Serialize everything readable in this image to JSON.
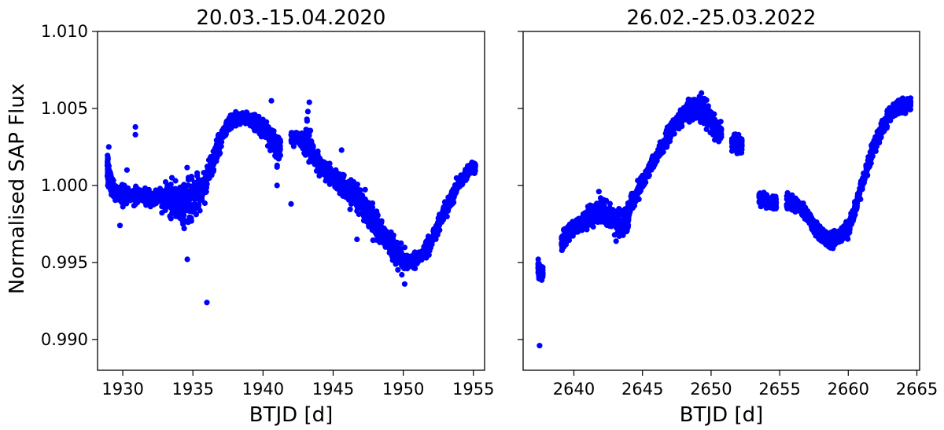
{
  "figure": {
    "ylabel": "Normalised SAP Flux"
  },
  "chart_data": [
    {
      "type": "scatter",
      "title": "20.03.-15.04.2020",
      "xlabel": "BTJD [d]",
      "ylabel": "Normalised SAP Flux",
      "xlim": [
        1928.2,
        1955.8
      ],
      "ylim": [
        0.988,
        1.01
      ],
      "xticks": [
        1930,
        1935,
        1940,
        1945,
        1950,
        1955
      ],
      "xtick_labels": [
        "1930",
        "1935",
        "1940",
        "1945",
        "1950",
        "1955"
      ],
      "yticks": [
        0.99,
        0.995,
        1.0,
        1.005,
        1.01
      ],
      "ytick_labels": [
        "0.990",
        "0.995",
        "1.000",
        "1.005",
        "1.010"
      ],
      "marker_color": "#0000ff",
      "grid": false,
      "series": [
        {
          "x": [
            1928.9,
            1929.0,
            1929.2,
            1929.5,
            1930.0,
            1930.5,
            1931.0,
            1931.5,
            1932.0,
            1932.5,
            1933.0,
            1933.5,
            1934.0,
            1934.5,
            1935.0,
            1935.5,
            1936.0,
            1936.5,
            1937.0,
            1937.5,
            1938.0,
            1938.5,
            1939.0,
            1939.5,
            1940.0,
            1940.5,
            1941.0,
            1942.0,
            1942.3,
            1942.6,
            1943.2,
            1943.5,
            1944.0,
            1944.5,
            1945.0,
            1945.5,
            1946.0,
            1946.5,
            1947.0,
            1947.5,
            1948.0,
            1948.5,
            1949.0,
            1949.5,
            1950.0,
            1950.5,
            1951.0,
            1951.5,
            1952.0,
            1952.5,
            1953.0,
            1953.5,
            1954.0,
            1954.5,
            1954.9
          ],
          "y": [
            1.0015,
            1.0005,
            1.0,
            0.9995,
            0.9994,
            0.9994,
            0.9993,
            0.9993,
            0.9992,
            0.9992,
            0.9991,
            0.999,
            0.9989,
            0.9989,
            0.9991,
            0.9995,
            1.0005,
            1.0018,
            1.003,
            1.0039,
            1.0043,
            1.0044,
            1.0043,
            1.0041,
            1.0037,
            1.0032,
            1.0025,
            1.003,
            1.0031,
            1.003,
            1.003,
            1.002,
            1.0014,
            1.0009,
            1.0005,
            1.0001,
            0.9997,
            0.9993,
            0.9988,
            0.9982,
            0.9976,
            0.997,
            0.9963,
            0.9957,
            0.9952,
            0.995,
            0.9952,
            0.9957,
            0.9964,
            0.9974,
            0.9984,
            0.9993,
            1.0001,
            1.0008,
            1.0012
          ],
          "spread": [
            0.0012,
            0.0008,
            0.0006,
            0.0005,
            0.0005,
            0.0005,
            0.0005,
            0.0005,
            0.0005,
            0.0006,
            0.0008,
            0.001,
            0.0014,
            0.0016,
            0.0014,
            0.0012,
            0.001,
            0.0008,
            0.0006,
            0.0005,
            0.0005,
            0.0004,
            0.0004,
            0.0005,
            0.0006,
            0.0007,
            0.0008,
            0.0004,
            0.0004,
            0.0004,
            0.0012,
            0.0008,
            0.0007,
            0.0006,
            0.0007,
            0.0008,
            0.0008,
            0.0008,
            0.0009,
            0.0009,
            0.0009,
            0.0008,
            0.0008,
            0.0007,
            0.0007,
            0.0005,
            0.0005,
            0.0005,
            0.0005,
            0.0005,
            0.0005,
            0.0005,
            0.0004,
            0.0004,
            0.0004
          ]
        }
      ],
      "outliers": [
        {
          "x": 1929.0,
          "y": 1.0025
        },
        {
          "x": 1930.9,
          "y": 1.0038
        },
        {
          "x": 1930.9,
          "y": 1.0033
        },
        {
          "x": 1930.3,
          "y": 1.001
        },
        {
          "x": 1933.5,
          "y": 1.0005
        },
        {
          "x": 1934.6,
          "y": 0.9952
        },
        {
          "x": 1936.0,
          "y": 0.9924
        },
        {
          "x": 1929.8,
          "y": 0.9974
        },
        {
          "x": 1941.0,
          "y": 1.0012
        },
        {
          "x": 1941.0,
          "y": 1.0
        },
        {
          "x": 1940.6,
          "y": 1.0055
        },
        {
          "x": 1942.0,
          "y": 0.9988
        },
        {
          "x": 1943.3,
          "y": 1.0054
        },
        {
          "x": 1943.2,
          "y": 1.0048
        },
        {
          "x": 1945.6,
          "y": 1.0023
        },
        {
          "x": 1946.7,
          "y": 0.9965
        },
        {
          "x": 1948.8,
          "y": 0.9962
        },
        {
          "x": 1950.1,
          "y": 0.9936
        },
        {
          "x": 1949.9,
          "y": 0.9942
        }
      ]
    },
    {
      "type": "scatter",
      "title": "26.02.-25.03.2022",
      "xlabel": "BTJD [d]",
      "ylabel": "",
      "xlim": [
        2636.3,
        2665.2
      ],
      "ylim": [
        0.988,
        1.01
      ],
      "xticks": [
        2640,
        2645,
        2650,
        2655,
        2660,
        2665
      ],
      "xtick_labels": [
        "2640",
        "2645",
        "2650",
        "2655",
        "2660",
        "2665"
      ],
      "yticks": [
        0.99,
        0.995,
        1.0,
        1.005,
        1.01
      ],
      "ytick_labels": [],
      "marker_color": "#0000ff",
      "grid": false,
      "series": [
        {
          "x": [
            2637.4,
            2637.5,
            2639.1,
            2639.5,
            2640.0,
            2640.5,
            2641.0,
            2641.5,
            2642.0,
            2642.5,
            2643.0,
            2643.5,
            2643.9,
            2644.0,
            2644.5,
            2645.0,
            2645.5,
            2646.0,
            2646.5,
            2647.0,
            2647.5,
            2648.0,
            2648.5,
            2649.0,
            2649.5,
            2650.0,
            2650.5,
            2651.5,
            2651.8,
            2652.0,
            2653.5,
            2654.0,
            2654.5,
            2655.5,
            2656.0,
            2656.5,
            2657.0,
            2657.5,
            2658.0,
            2658.5,
            2659.0,
            2659.5,
            2660.0,
            2660.5,
            2661.0,
            2661.5,
            2662.0,
            2662.5,
            2663.0,
            2663.5,
            2664.0,
            2664.3
          ],
          "y": [
            0.9946,
            0.9943,
            0.9962,
            0.9968,
            0.9972,
            0.9976,
            0.998,
            0.9983,
            0.9983,
            0.998,
            0.9977,
            0.9975,
            0.9978,
            0.9985,
            0.9993,
            1.0002,
            1.001,
            1.0018,
            1.0026,
            1.0034,
            1.0041,
            1.0046,
            1.0049,
            1.005,
            1.0048,
            1.0043,
            1.0034,
            1.0028,
            1.0027,
            1.0026,
            0.9992,
            0.999,
            0.9989,
            0.9989,
            0.9988,
            0.9986,
            0.998,
            0.9973,
            0.9968,
            0.9965,
            0.9966,
            0.9968,
            0.9972,
            0.9985,
            1.0,
            1.0015,
            1.0028,
            1.0038,
            1.0046,
            1.005,
            1.0051,
            1.0052
          ],
          "spread": [
            0.0005,
            0.0004,
            0.0007,
            0.0006,
            0.0005,
            0.0005,
            0.0006,
            0.0007,
            0.0008,
            0.0008,
            0.0009,
            0.001,
            0.0009,
            0.0006,
            0.0005,
            0.0005,
            0.0005,
            0.0005,
            0.0005,
            0.0005,
            0.0006,
            0.0006,
            0.0007,
            0.0007,
            0.0008,
            0.0008,
            0.0006,
            0.0005,
            0.0005,
            0.0005,
            0.0005,
            0.0004,
            0.0004,
            0.0005,
            0.0005,
            0.0005,
            0.0005,
            0.0005,
            0.0005,
            0.0005,
            0.0005,
            0.0005,
            0.0005,
            0.0005,
            0.0005,
            0.0005,
            0.0005,
            0.0005,
            0.0005,
            0.0005,
            0.0005,
            0.0004
          ]
        }
      ],
      "outliers": [
        {
          "x": 2637.5,
          "y": 0.9896
        },
        {
          "x": 2637.4,
          "y": 0.9952
        },
        {
          "x": 2649.3,
          "y": 1.006
        },
        {
          "x": 2652.0,
          "y": 1.0033
        },
        {
          "x": 2651.9,
          "y": 1.0022
        }
      ]
    }
  ]
}
